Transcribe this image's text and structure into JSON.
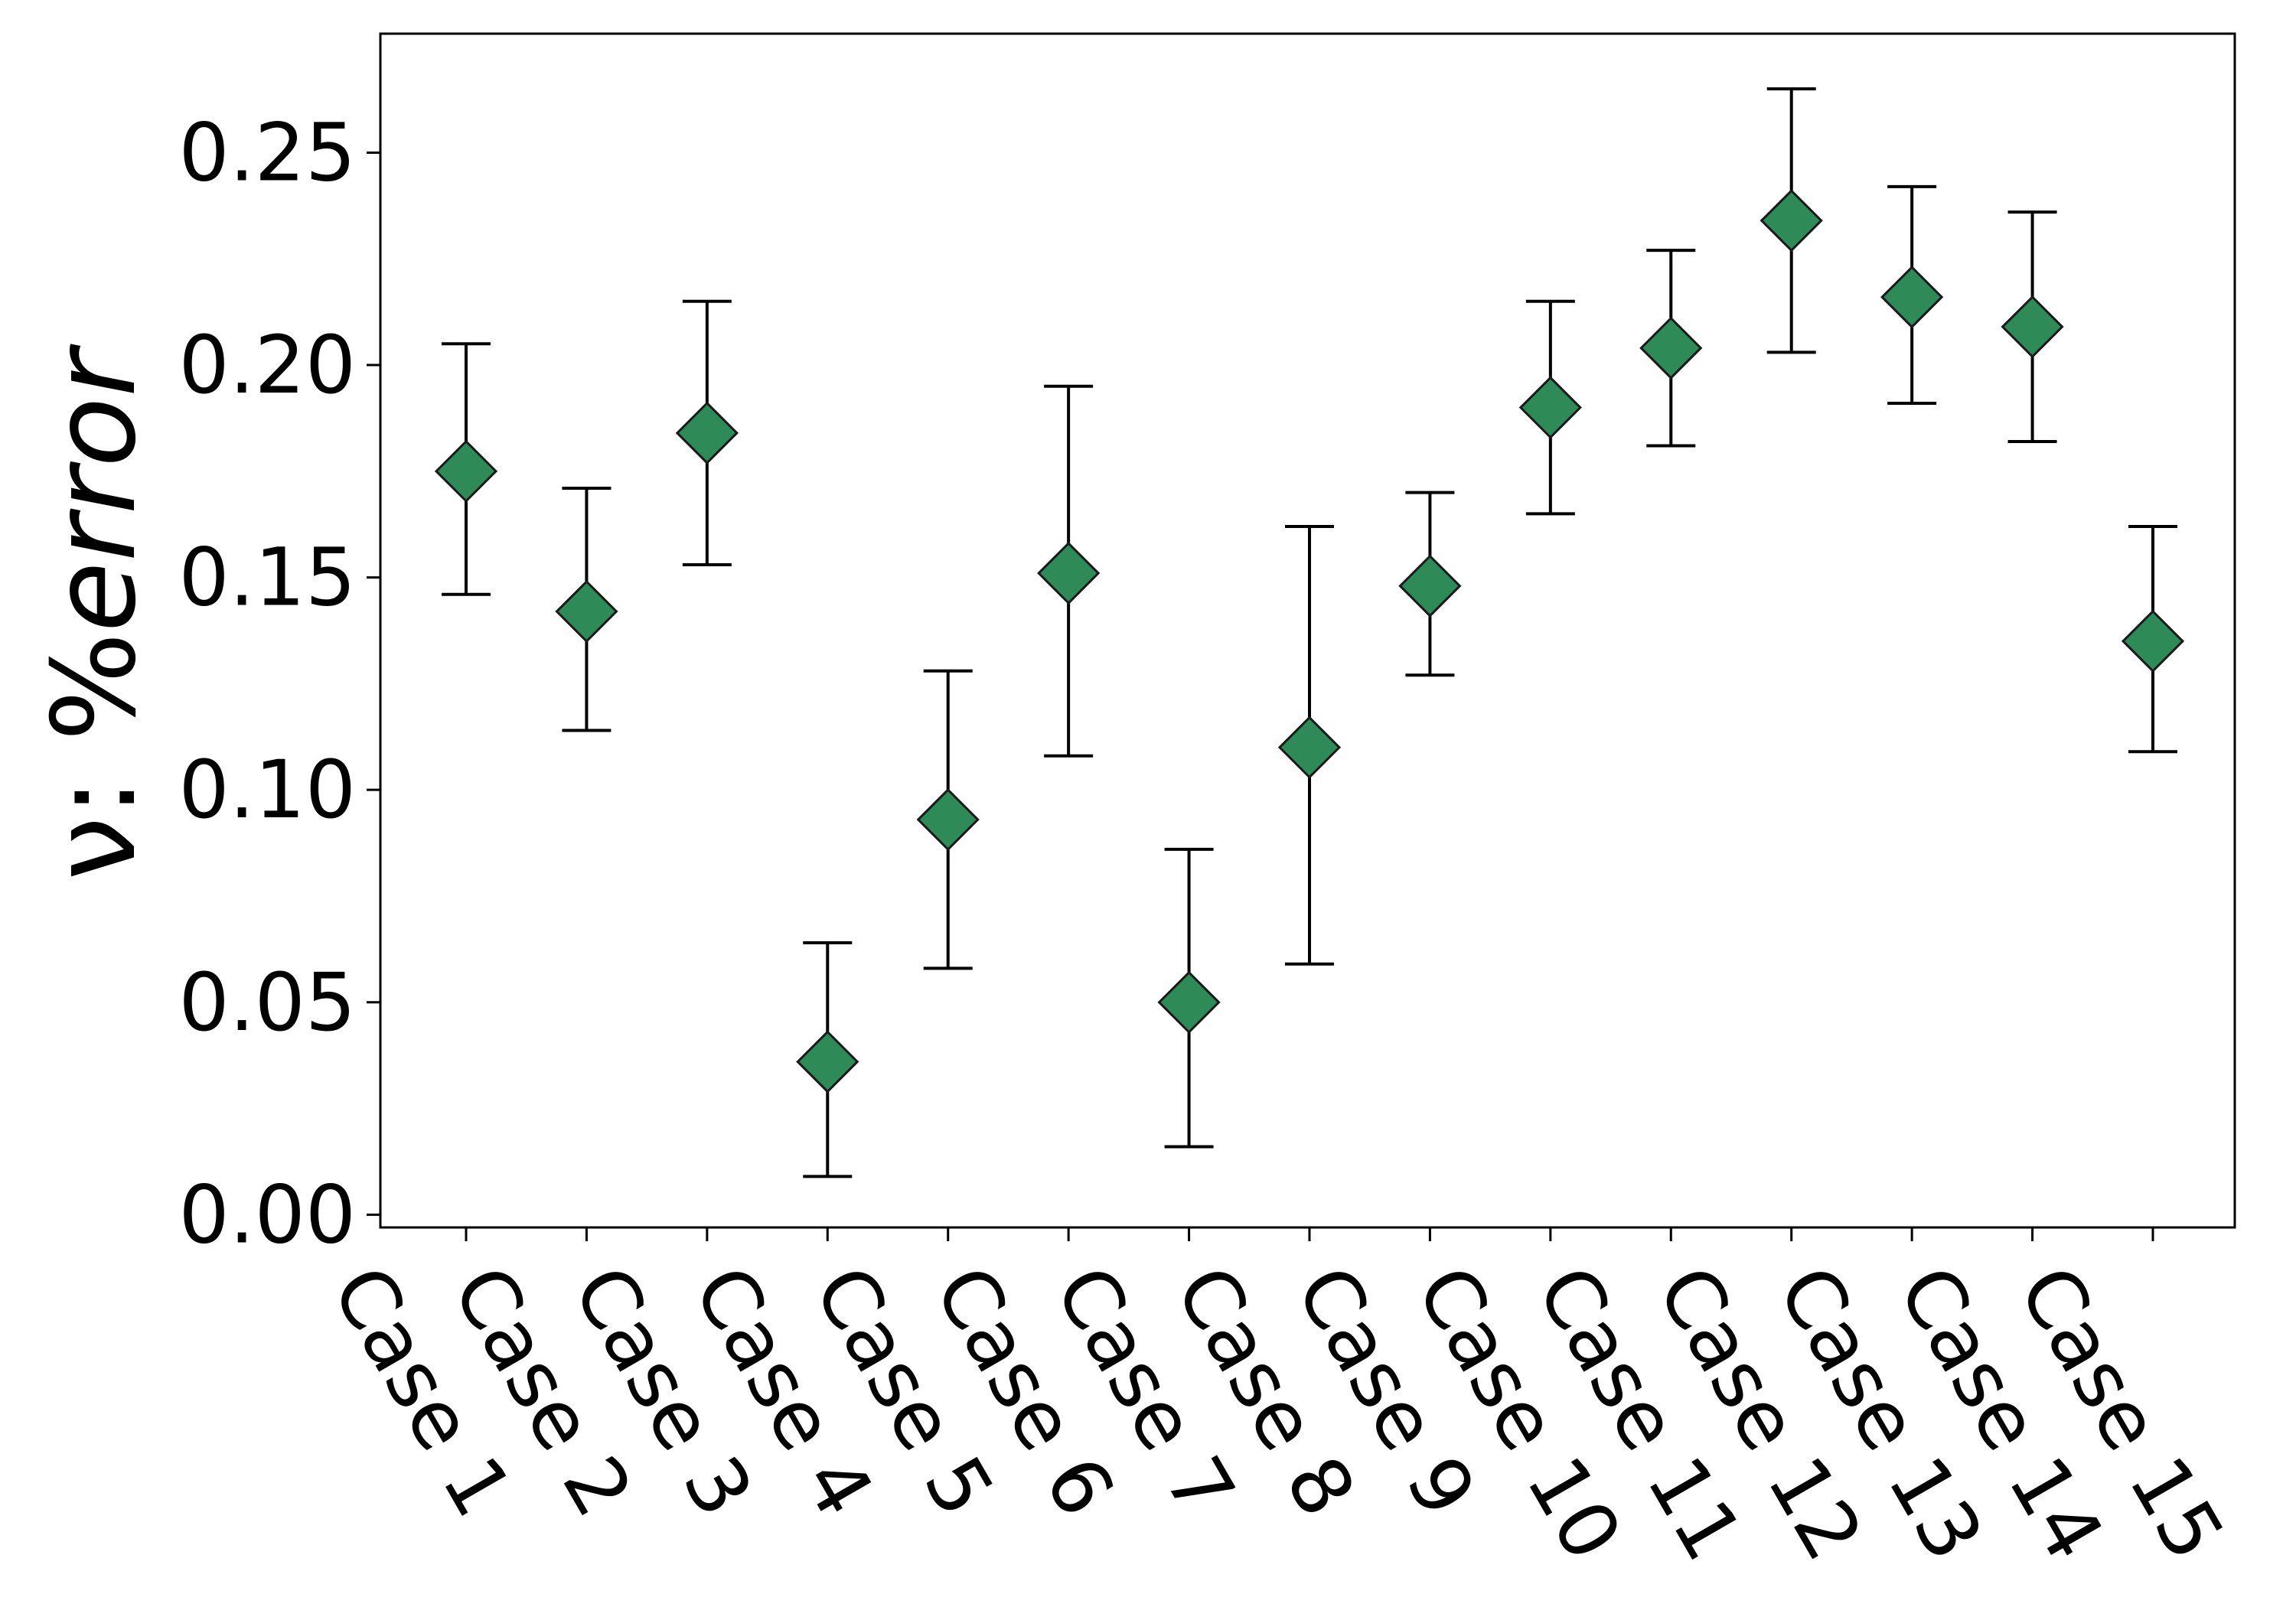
{
  "chart_data": {
    "type": "scatter",
    "marker": "diamond",
    "marker_color": "#2e8b57",
    "marker_edge_color": "#1a1a1a",
    "errorbar_color": "#000000",
    "categories": [
      "Case 1",
      "Case 2",
      "Case 3",
      "Case 4",
      "Case 5",
      "Case 6",
      "Case 7",
      "Case 8",
      "Case 9",
      "Case 10",
      "Case 11",
      "Case 12",
      "Case 13",
      "Case 14",
      "Case 15"
    ],
    "values": [
      0.175,
      0.142,
      0.184,
      0.036,
      0.093,
      0.151,
      0.05,
      0.11,
      0.148,
      0.19,
      0.204,
      0.234,
      0.216,
      0.209,
      0.135
    ],
    "errors_lower": [
      0.146,
      0.114,
      0.153,
      0.009,
      0.058,
      0.108,
      0.016,
      0.059,
      0.127,
      0.165,
      0.181,
      0.203,
      0.191,
      0.182,
      0.109
    ],
    "errors_upper": [
      0.205,
      0.171,
      0.215,
      0.064,
      0.128,
      0.195,
      0.086,
      0.162,
      0.17,
      0.215,
      0.227,
      0.265,
      0.242,
      0.236,
      0.162
    ],
    "ylim": [
      -0.003,
      0.278
    ],
    "yticks": [
      0.0,
      0.05,
      0.1,
      0.15,
      0.2,
      0.25
    ],
    "ytick_labels": [
      "0.00",
      "0.05",
      "0.10",
      "0.15",
      "0.20",
      "0.25"
    ],
    "ylabel_prefix": "ν: %",
    "ylabel_suffix": "error",
    "xlabel": "",
    "title": "",
    "xtick_rotation": "-60",
    "grid": false,
    "legend": "none"
  }
}
